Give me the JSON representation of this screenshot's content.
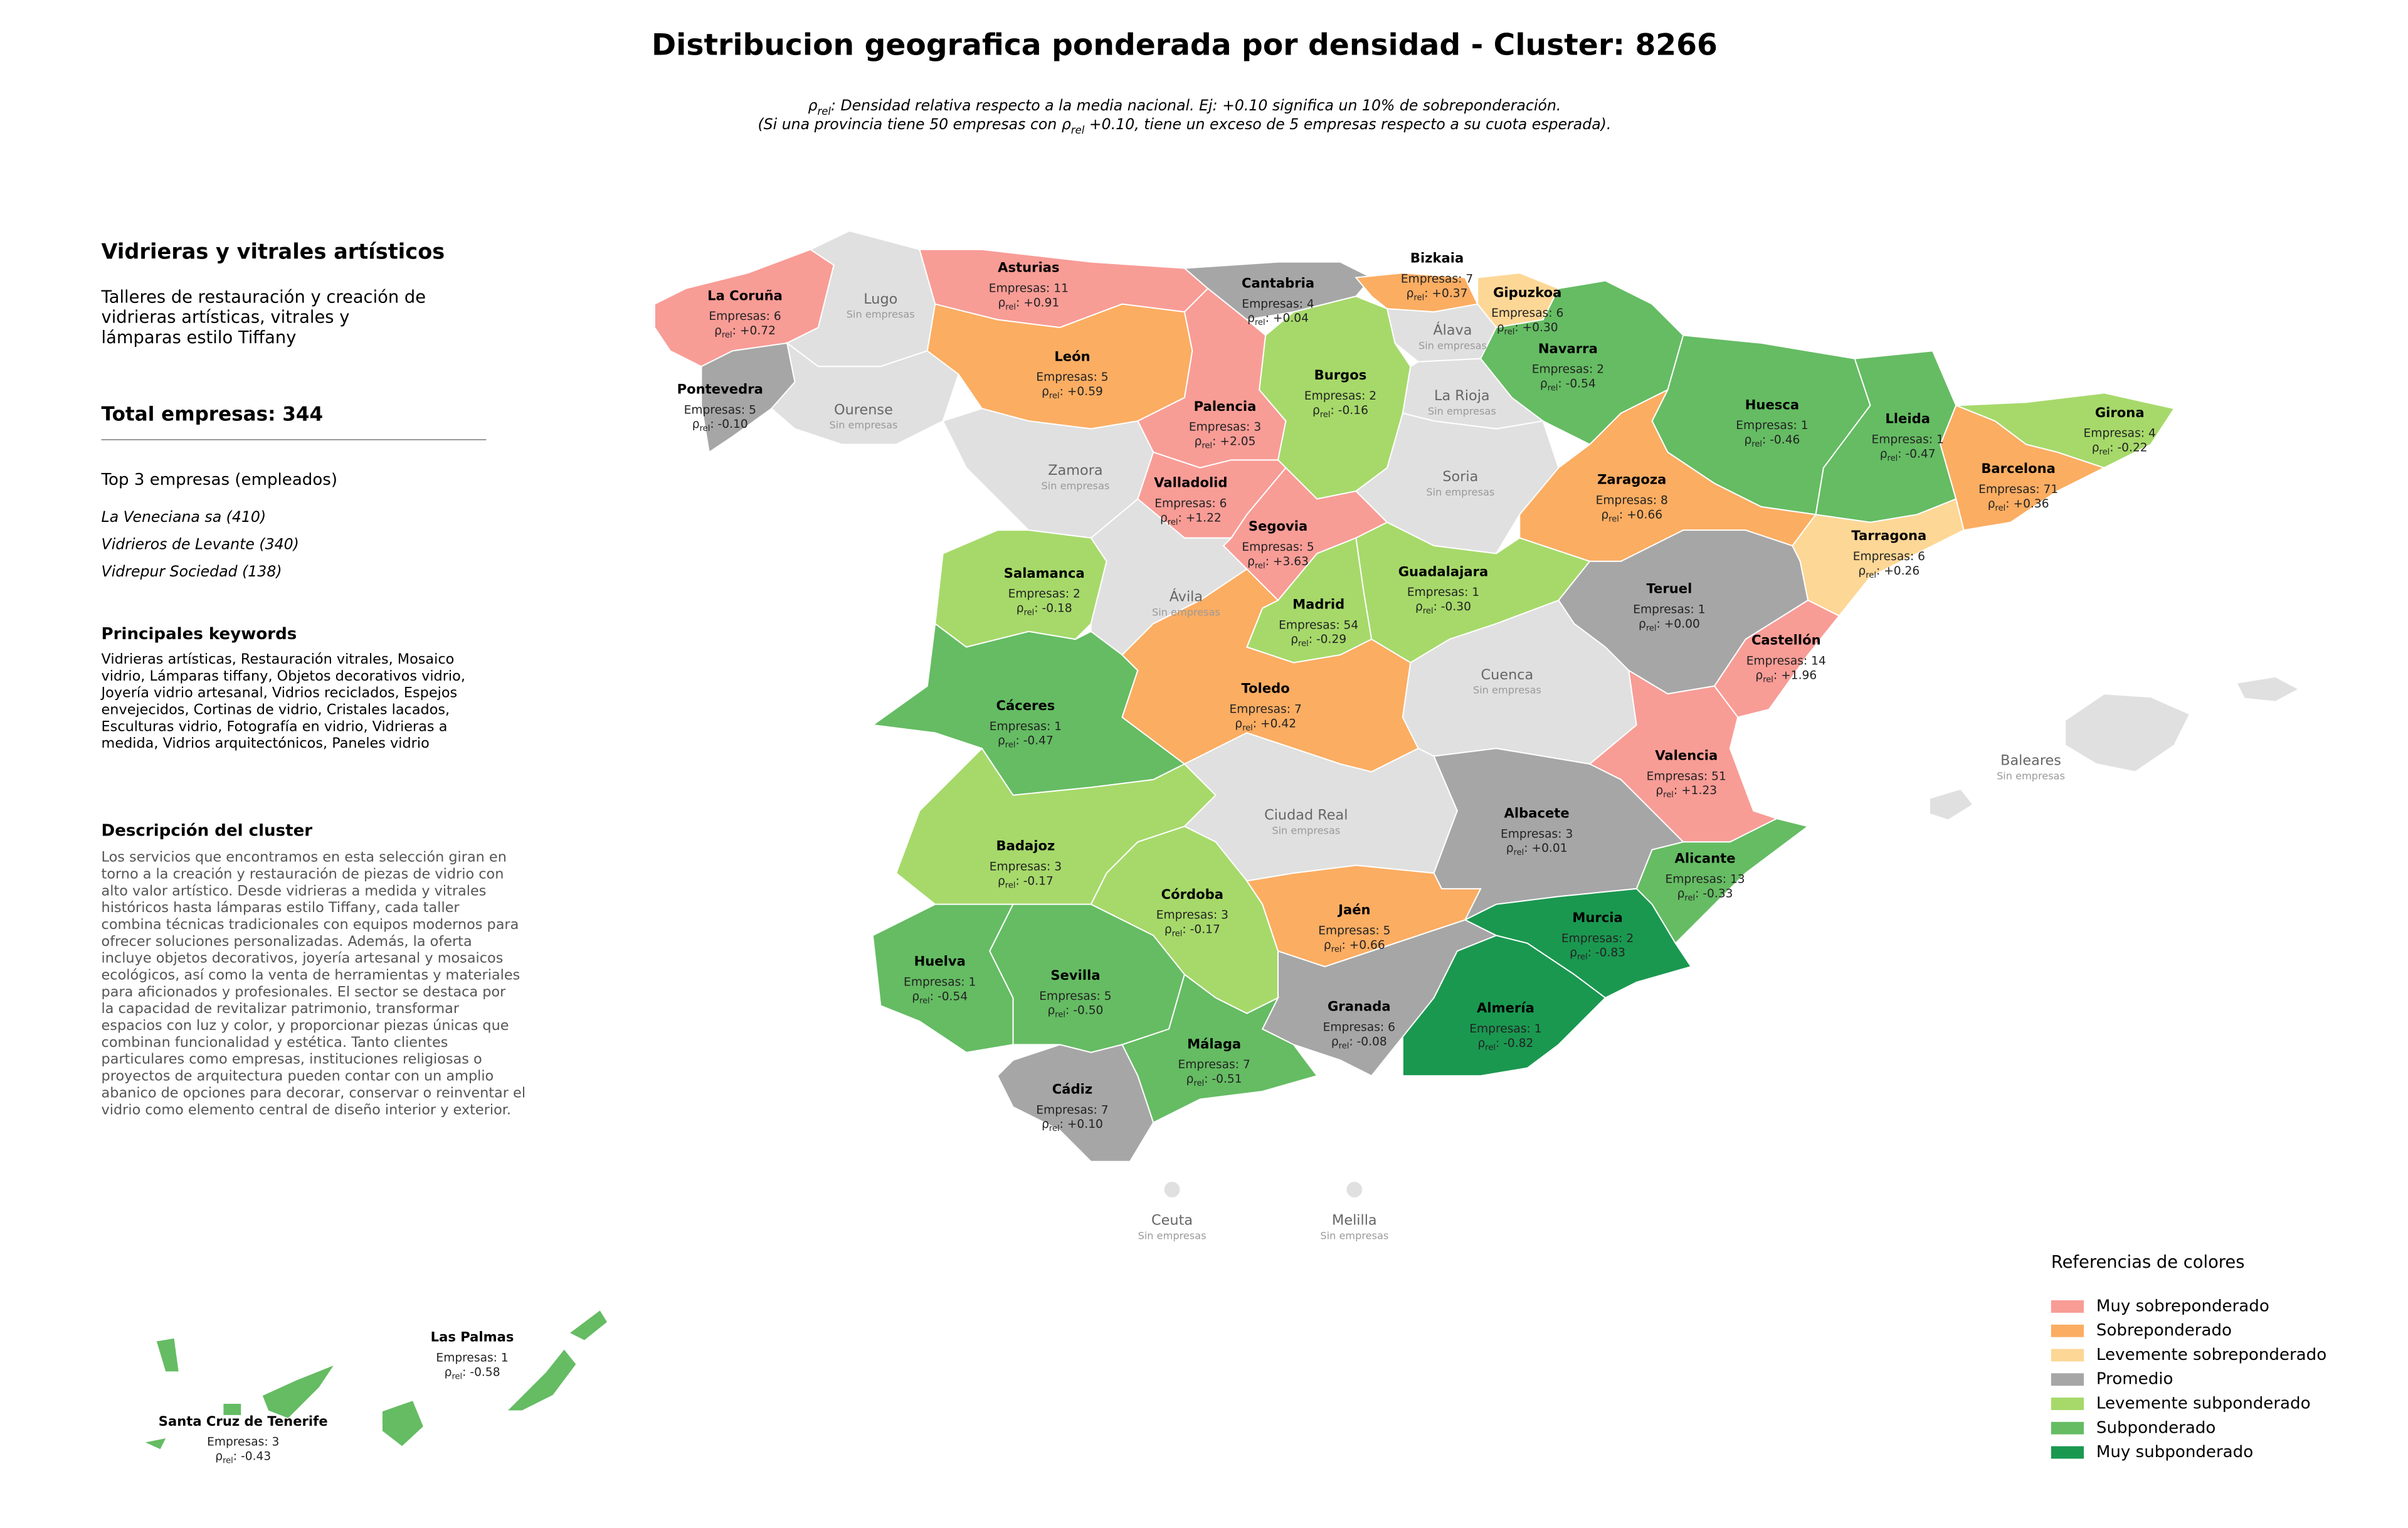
{
  "header": {
    "title": "Distribucion geografica ponderada por densidad - Cluster: 8266",
    "subtitle_line1": {
      "symbol": "ρ",
      "sub": "rel",
      "text": ": Densidad relativa respecto a la media nacional. Ej: +0.10 significa un 10% de sobreponderación."
    },
    "subtitle_line2": {
      "before": "(Si una provincia tiene 50 empresas con ",
      "symbol": "ρ",
      "sub": "rel",
      "after": " +0.10, tiene un exceso de 5 empresas respecto a su cuota esperada)."
    }
  },
  "panel": {
    "cluster_name": "Vidrieras y vitrales artísticos",
    "cluster_summary": [
      "Talleres de restauración y creación de",
      "vidrieras artísticas, vitrales y",
      "lámparas estilo Tiffany"
    ],
    "total": "Total empresas: 344",
    "top_heading": "Top 3 empresas (empleados)",
    "top_companies": [
      "La Veneciana sa (410)",
      "Vidrieros de Levante (340)",
      "Vidrepur Sociedad (138)"
    ],
    "keywords_heading": "Principales keywords",
    "keywords": [
      "Vidrieras artísticas, Restauración vitrales, Mosaico",
      "vidrio, Lámparas tiffany, Objetos decorativos vidrio,",
      "Joyería vidrio artesanal, Vidrios reciclados, Espejos",
      "envejecidos, Cortinas de vidrio, Cristales lacados,",
      "Esculturas vidrio, Fotografía en vidrio, Vidrieras a",
      "medida, Vidrios arquitectónicos, Paneles vidrio"
    ],
    "description_heading": "Descripción del cluster",
    "description": [
      "Los servicios que encontramos en esta selección giran en",
      "torno a la creación y restauración de piezas de vidrio con",
      "alto valor artístico. Desde vidrieras a medida y vitrales",
      "históricos hasta lámparas estilo Tiffany, cada taller",
      "combina técnicas tradicionales con equipos modernos para",
      "ofrecer soluciones personalizadas. Además, la oferta",
      "incluye objetos decorativos, joyería artesanal y mosaicos",
      "ecológicos, así como la venta de herramientas y materiales",
      "para aficionados y profesionales. El sector se destaca por",
      "la capacidad de revitalizar patrimonio, transformar",
      "espacios con luz y color, y proporcionar piezas únicas que",
      "combinan funcionalidad y estética. Tanto clientes",
      "particulares como empresas, instituciones religiosas o",
      "proyectos de arquitectura pueden contar con un amplio",
      "abanico de opciones para decorar, conservar o reinventar el",
      "vidrio como elemento central de diseño interior y exterior."
    ]
  },
  "map": {
    "rho_label": {
      "symbol": "ρ",
      "sub": "rel",
      "sep": ": "
    },
    "provinces": [
      {
        "name": "La Coruña",
        "empresas": "Empresas: 6",
        "rho": "+0.72",
        "color": "#f89c96"
      },
      {
        "name": "Lugo",
        "note": "Sin empresas",
        "color": "#e0e0e0"
      },
      {
        "name": "Asturias",
        "empresas": "Empresas: 11",
        "rho": "+0.91",
        "color": "#f89c96"
      },
      {
        "name": "Cantabria",
        "empresas": "Empresas: 4",
        "rho": "+0.04",
        "color": "#a6a6a6"
      },
      {
        "name": "Bizkaia",
        "empresas": "Empresas: 7",
        "rho": "+0.37",
        "color": "#fbad62"
      },
      {
        "name": "Gipuzkoa",
        "empresas": "Empresas: 6",
        "rho": "+0.30",
        "color": "#fdd796"
      },
      {
        "name": "Álava",
        "note": "Sin empresas",
        "color": "#e0e0e0"
      },
      {
        "name": "Navarra",
        "empresas": "Empresas: 2",
        "rho": "-0.54",
        "color": "#65bc63"
      },
      {
        "name": "Pontevedra",
        "empresas": "Empresas: 5",
        "rho": "-0.10",
        "color": "#a6a6a6"
      },
      {
        "name": "Ourense",
        "note": "Sin empresas",
        "color": "#e0e0e0"
      },
      {
        "name": "León",
        "empresas": "Empresas: 5",
        "rho": "+0.59",
        "color": "#fbad62"
      },
      {
        "name": "Palencia",
        "empresas": "Empresas: 3",
        "rho": "+2.05",
        "color": "#f89c96"
      },
      {
        "name": "Burgos",
        "empresas": "Empresas: 2",
        "rho": "-0.16",
        "color": "#a6d96a"
      },
      {
        "name": "La Rioja",
        "note": "Sin empresas",
        "color": "#e0e0e0"
      },
      {
        "name": "Huesca",
        "empresas": "Empresas: 1",
        "rho": "-0.46",
        "color": "#65bc63"
      },
      {
        "name": "Lleida",
        "empresas": "Empresas: 1",
        "rho": "-0.47",
        "color": "#65bc63"
      },
      {
        "name": "Girona",
        "empresas": "Empresas: 4",
        "rho": "-0.22",
        "color": "#a6d96a"
      },
      {
        "name": "Zamora",
        "note": "Sin empresas",
        "color": "#e0e0e0"
      },
      {
        "name": "Valladolid",
        "empresas": "Empresas: 6",
        "rho": "+1.22",
        "color": "#f89c96"
      },
      {
        "name": "Soria",
        "note": "Sin empresas",
        "color": "#e0e0e0"
      },
      {
        "name": "Zaragoza",
        "empresas": "Empresas: 8",
        "rho": "+0.66",
        "color": "#fbad62"
      },
      {
        "name": "Barcelona",
        "empresas": "Empresas: 71",
        "rho": "+0.36",
        "color": "#fbad62"
      },
      {
        "name": "Segovia",
        "empresas": "Empresas: 5",
        "rho": "+3.63",
        "color": "#f89c96"
      },
      {
        "name": "Tarragona",
        "empresas": "Empresas: 6",
        "rho": "+0.26",
        "color": "#fdd796"
      },
      {
        "name": "Salamanca",
        "empresas": "Empresas: 2",
        "rho": "-0.18",
        "color": "#a6d96a"
      },
      {
        "name": "Ávila",
        "note": "Sin empresas",
        "color": "#e0e0e0"
      },
      {
        "name": "Guadalajara",
        "empresas": "Empresas: 1",
        "rho": "-0.30",
        "color": "#a6d96a"
      },
      {
        "name": "Madrid",
        "empresas": "Empresas: 54",
        "rho": "-0.29",
        "color": "#a6d96a"
      },
      {
        "name": "Teruel",
        "empresas": "Empresas: 1",
        "rho": "+0.00",
        "color": "#a6a6a6"
      },
      {
        "name": "Castellón",
        "empresas": "Empresas: 14",
        "rho": "+1.96",
        "color": "#f89c96"
      },
      {
        "name": "Cáceres",
        "empresas": "Empresas: 1",
        "rho": "-0.47",
        "color": "#65bc63"
      },
      {
        "name": "Toledo",
        "empresas": "Empresas: 7",
        "rho": "+0.42",
        "color": "#fbad62"
      },
      {
        "name": "Cuenca",
        "note": "Sin empresas",
        "color": "#e0e0e0"
      },
      {
        "name": "Valencia",
        "empresas": "Empresas: 51",
        "rho": "+1.23",
        "color": "#f89c96"
      },
      {
        "name": "Baleares",
        "note": "Sin empresas",
        "color": "#e0e0e0"
      },
      {
        "name": "Badajoz",
        "empresas": "Empresas: 3",
        "rho": "-0.17",
        "color": "#a6d96a"
      },
      {
        "name": "Ciudad Real",
        "note": "Sin empresas",
        "color": "#e0e0e0"
      },
      {
        "name": "Albacete",
        "empresas": "Empresas: 3",
        "rho": "+0.01",
        "color": "#a6a6a6"
      },
      {
        "name": "Alicante",
        "empresas": "Empresas: 13",
        "rho": "-0.33",
        "color": "#65bc63"
      },
      {
        "name": "Córdoba",
        "empresas": "Empresas: 3",
        "rho": "-0.17",
        "color": "#a6d96a"
      },
      {
        "name": "Jaén",
        "empresas": "Empresas: 5",
        "rho": "+0.66",
        "color": "#fbad62"
      },
      {
        "name": "Murcia",
        "empresas": "Empresas: 2",
        "rho": "-0.83",
        "color": "#1a9850"
      },
      {
        "name": "Huelva",
        "empresas": "Empresas: 1",
        "rho": "-0.54",
        "color": "#65bc63"
      },
      {
        "name": "Sevilla",
        "empresas": "Empresas: 5",
        "rho": "-0.50",
        "color": "#65bc63"
      },
      {
        "name": "Granada",
        "empresas": "Empresas: 6",
        "rho": "-0.08",
        "color": "#a6a6a6"
      },
      {
        "name": "Almería",
        "empresas": "Empresas: 1",
        "rho": "-0.82",
        "color": "#1a9850"
      },
      {
        "name": "Málaga",
        "empresas": "Empresas: 7",
        "rho": "-0.51",
        "color": "#65bc63"
      },
      {
        "name": "Cádiz",
        "empresas": "Empresas: 7",
        "rho": "+0.10",
        "color": "#a6a6a6"
      },
      {
        "name": "Ceuta",
        "note": "Sin empresas",
        "color": "#e0e0e0"
      },
      {
        "name": "Melilla",
        "note": "Sin empresas",
        "color": "#e0e0e0"
      },
      {
        "name": "Las Palmas",
        "empresas": "Empresas: 1",
        "rho": "-0.58",
        "color": "#65bc63"
      },
      {
        "name": "Santa Cruz de Tenerife",
        "empresas": "Empresas: 3",
        "rho": "-0.43",
        "color": "#65bc63"
      }
    ]
  },
  "legend": {
    "title": "Referencias de colores",
    "items": [
      {
        "label": "Muy sobreponderado",
        "color": "#f89c96"
      },
      {
        "label": "Sobreponderado",
        "color": "#fbad62"
      },
      {
        "label": "Levemente sobreponderado",
        "color": "#fdd796"
      },
      {
        "label": "Promedio",
        "color": "#a6a6a6"
      },
      {
        "label": "Levemente subponderado",
        "color": "#a6d96a"
      },
      {
        "label": "Subponderado",
        "color": "#65bc63"
      },
      {
        "label": "Muy subponderado",
        "color": "#1a9850"
      }
    ]
  }
}
